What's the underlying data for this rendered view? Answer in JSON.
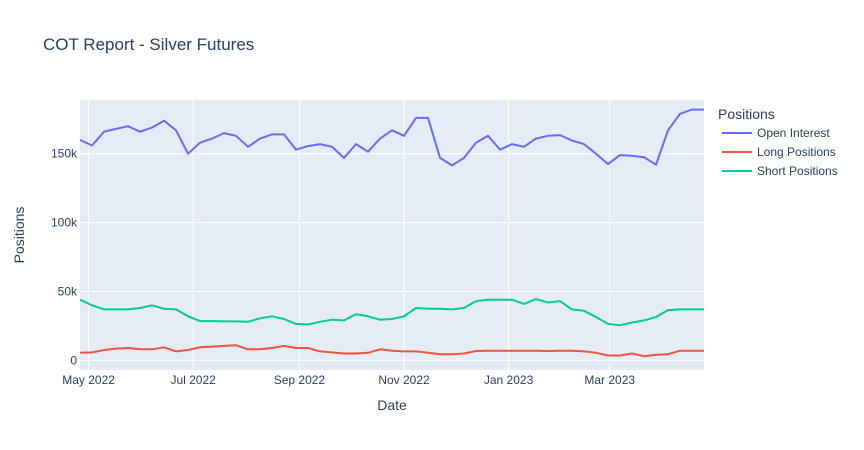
{
  "chart_data": {
    "type": "line",
    "title": "COT Report - Silver Futures",
    "xlabel": "Date",
    "ylabel": "Positions",
    "legend_title": "Positions",
    "legend_position": "right",
    "grid": true,
    "x_range": [
      "2022-04-26",
      "2023-04-25"
    ],
    "y_range": [
      -7000,
      189000
    ],
    "x_ticks": [
      {
        "date": "2022-05-01",
        "label": "May 2022"
      },
      {
        "date": "2022-07-01",
        "label": "Jul 2022"
      },
      {
        "date": "2022-09-01",
        "label": "Sep 2022"
      },
      {
        "date": "2022-11-01",
        "label": "Nov 2022"
      },
      {
        "date": "2023-01-01",
        "label": "Jan 2023"
      },
      {
        "date": "2023-03-01",
        "label": "Mar 2023"
      }
    ],
    "y_ticks": [
      {
        "value": 0,
        "label": "0"
      },
      {
        "value": 50000,
        "label": "50k"
      },
      {
        "value": 100000,
        "label": "100k"
      },
      {
        "value": 150000,
        "label": "150k"
      }
    ],
    "x": [
      "2022-04-26",
      "2022-05-03",
      "2022-05-10",
      "2022-05-17",
      "2022-05-24",
      "2022-05-31",
      "2022-06-07",
      "2022-06-14",
      "2022-06-21",
      "2022-06-28",
      "2022-07-05",
      "2022-07-12",
      "2022-07-19",
      "2022-07-26",
      "2022-08-02",
      "2022-08-09",
      "2022-08-16",
      "2022-08-23",
      "2022-08-30",
      "2022-09-06",
      "2022-09-13",
      "2022-09-20",
      "2022-09-27",
      "2022-10-04",
      "2022-10-11",
      "2022-10-18",
      "2022-10-25",
      "2022-11-01",
      "2022-11-08",
      "2022-11-15",
      "2022-11-22",
      "2022-11-29",
      "2022-12-06",
      "2022-12-13",
      "2022-12-20",
      "2022-12-27",
      "2023-01-03",
      "2023-01-10",
      "2023-01-17",
      "2023-01-24",
      "2023-01-31",
      "2023-02-07",
      "2023-02-14",
      "2023-02-21",
      "2023-02-28",
      "2023-03-07",
      "2023-03-14",
      "2023-03-21",
      "2023-03-28",
      "2023-04-04",
      "2023-04-11",
      "2023-04-18",
      "2023-04-25"
    ],
    "series": [
      {
        "name": "Open Interest",
        "color": "#636efa",
        "values": [
          160000,
          156000,
          166000,
          168000,
          170000,
          166000,
          169000,
          174000,
          167000,
          150000,
          158000,
          161000,
          165000,
          163000,
          155000,
          161000,
          164000,
          164000,
          153000,
          155500,
          157000,
          155000,
          147000,
          157000,
          151500,
          161000,
          167000,
          163000,
          176000,
          176000,
          147000,
          141500,
          147000,
          158000,
          163000,
          153000,
          157000,
          155000,
          161000,
          163000,
          163500,
          159500,
          157000,
          150000,
          142500,
          149000,
          148500,
          147500,
          142000,
          167000,
          179000,
          182000,
          182000
        ]
      },
      {
        "name": "Long Positions",
        "color": "#ef553b",
        "values": [
          5500,
          5800,
          7500,
          8500,
          9000,
          8000,
          8000,
          9500,
          6500,
          7500,
          9500,
          10000,
          10500,
          11000,
          8000,
          8000,
          9000,
          10500,
          9000,
          9000,
          6500,
          5800,
          5000,
          5000,
          5500,
          8000,
          7000,
          6500,
          6500,
          5500,
          4500,
          4500,
          5000,
          6800,
          7000,
          7000,
          7000,
          7000,
          7000,
          6800,
          7000,
          7000,
          6500,
          5500,
          3500,
          3500,
          5000,
          3000,
          4000,
          4500,
          7000,
          7000,
          7000
        ]
      },
      {
        "name": "Short Positions",
        "color": "#00cc96",
        "values": [
          44000,
          40000,
          37000,
          37000,
          37000,
          38000,
          40000,
          37500,
          37000,
          32000,
          28500,
          28500,
          28300,
          28300,
          28000,
          30500,
          32000,
          30000,
          26500,
          26000,
          28000,
          29500,
          29000,
          33500,
          32000,
          29500,
          30000,
          32000,
          38000,
          37500,
          37500,
          37000,
          38000,
          43000,
          44000,
          44000,
          44000,
          41000,
          44500,
          42000,
          43000,
          37000,
          36000,
          31500,
          26500,
          25500,
          27500,
          29000,
          31500,
          36500,
          37000,
          37000,
          37000
        ]
      }
    ]
  }
}
